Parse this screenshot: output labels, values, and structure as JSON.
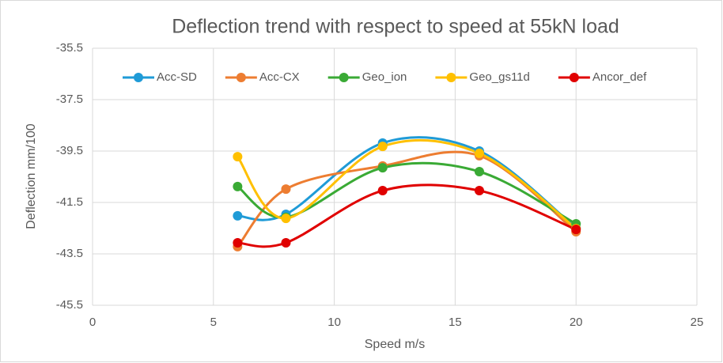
{
  "chart_data": {
    "type": "scatter",
    "title": "Deflection trend with respect to speed at 55kN load",
    "x_label": "Speed m/s",
    "y_label": "Deflection mm/100",
    "x": [
      6,
      8,
      12,
      16,
      20
    ],
    "series": [
      {
        "name": "Acc-SD",
        "color": "#1f9bd7",
        "values": [
          -42.02,
          -41.96,
          -39.19,
          -39.5,
          -42.5
        ]
      },
      {
        "name": "Acc-CX",
        "color": "#ed7d31",
        "values": [
          -43.22,
          -40.98,
          -40.08,
          -39.68,
          -42.64
        ]
      },
      {
        "name": "Geo_ion",
        "color": "#3aaa35",
        "values": [
          -40.88,
          -42.08,
          -40.15,
          -40.3,
          -42.33
        ]
      },
      {
        "name": "Geo_gs11d",
        "color": "#ffc000",
        "values": [
          -39.72,
          -42.12,
          -39.32,
          -39.59,
          -42.52
        ]
      },
      {
        "name": "Ancor_def",
        "color": "#e00000",
        "values": [
          -43.07,
          -43.07,
          -41.04,
          -41.04,
          -42.55
        ]
      }
    ],
    "xlim": [
      0,
      25
    ],
    "xticks": [
      0,
      5,
      10,
      15,
      20,
      25
    ],
    "ylim": [
      -45.5,
      -35.5
    ],
    "yticks": [
      -35.5,
      -37.5,
      -39.5,
      -41.5,
      -43.5,
      -45.5
    ],
    "grid": true,
    "smooth": true,
    "legend": "top"
  }
}
